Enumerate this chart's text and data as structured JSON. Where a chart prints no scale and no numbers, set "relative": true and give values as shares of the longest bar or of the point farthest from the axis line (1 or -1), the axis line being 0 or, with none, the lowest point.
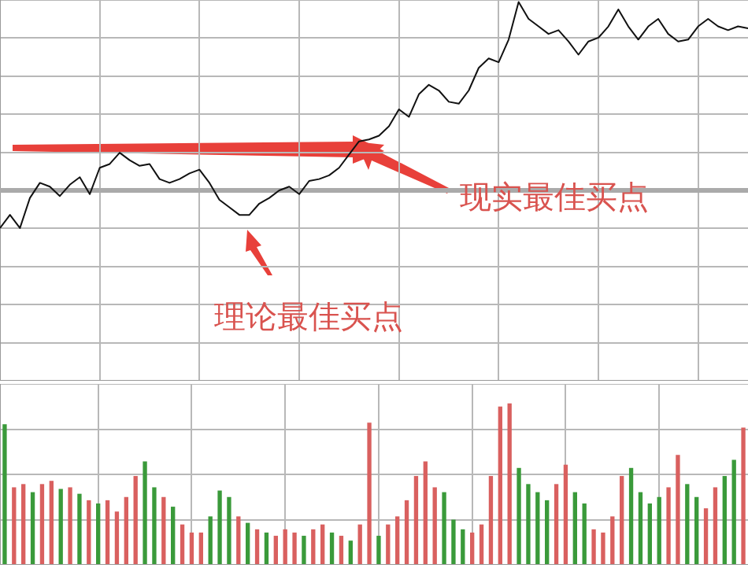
{
  "chart_data": [
    {
      "type": "line",
      "relative": true,
      "grid": true,
      "marker": "none",
      "line_style": "solid",
      "categories": [
        null,
        null,
        null,
        null,
        null,
        null,
        null,
        null,
        null,
        null,
        null,
        null,
        null,
        null,
        null,
        null,
        null,
        null,
        null,
        null,
        null,
        null,
        null,
        null,
        null,
        null,
        null,
        null,
        null,
        null,
        null,
        null,
        null,
        null,
        null,
        null,
        null,
        null,
        null,
        null,
        null,
        null,
        null,
        null,
        null,
        null,
        null,
        null,
        null,
        null,
        null,
        null,
        null,
        null,
        null,
        null,
        null,
        null,
        null,
        null,
        null,
        null,
        null,
        null,
        null,
        null,
        null,
        null,
        null,
        null,
        null,
        null,
        null,
        null,
        null,
        null
      ],
      "series": [
        {
          "color": "#111111",
          "values": [
            -0.2,
            -0.13,
            -0.2,
            -0.04,
            0.04,
            0.02,
            -0.03,
            0.03,
            0.07,
            -0.02,
            0.12,
            0.14,
            0.2,
            0.16,
            0.13,
            0.14,
            0.06,
            0.04,
            0.06,
            0.09,
            0.11,
            0.04,
            -0.05,
            -0.09,
            -0.13,
            -0.13,
            -0.07,
            -0.04,
            0,
            0.02,
            -0.02,
            0.05,
            0.06,
            0.08,
            0.12,
            0.19,
            0.26,
            0.27,
            0.29,
            0.34,
            0.43,
            0.39,
            0.51,
            0.56,
            0.53,
            0.47,
            0.46,
            0.53,
            0.65,
            0.7,
            0.68,
            0.8,
            1.0,
            0.91,
            0.87,
            0.83,
            0.85,
            0.79,
            0.72,
            0.79,
            0.81,
            0.87,
            0.96,
            0.87,
            0.8,
            0.87,
            0.91,
            0.83,
            0.79,
            0.8,
            0.87,
            0.91,
            0.87,
            0.85,
            0.87,
            0.86
          ]
        }
      ],
      "ref_lines": [
        {
          "axis": "y",
          "value": 0,
          "color": "#aaaaaa"
        }
      ],
      "annotations": [
        "现实最佳买点",
        "理论最佳买点"
      ]
    },
    {
      "type": "bar",
      "relative": true,
      "grid": true,
      "categories": [
        null,
        null,
        null,
        null,
        null,
        null,
        null,
        null,
        null,
        null,
        null,
        null,
        null,
        null,
        null,
        null,
        null,
        null,
        null,
        null,
        null,
        null,
        null,
        null,
        null,
        null,
        null,
        null,
        null,
        null,
        null,
        null,
        null,
        null,
        null,
        null,
        null,
        null,
        null,
        null,
        null,
        null,
        null,
        null,
        null,
        null,
        null,
        null,
        null,
        null,
        null,
        null,
        null,
        null,
        null,
        null,
        null,
        null,
        null,
        null,
        null,
        null,
        null,
        null,
        null,
        null,
        null,
        null,
        null,
        null,
        null,
        null,
        null,
        null,
        null,
        null,
        null,
        null,
        null,
        null
      ],
      "values": [
        0.87,
        0.48,
        0.5,
        0.45,
        0.5,
        0.52,
        0.47,
        0.48,
        0.44,
        0.4,
        0.38,
        0.4,
        0.33,
        0.42,
        0.55,
        0.64,
        0.48,
        0.42,
        0.36,
        0.25,
        0.2,
        0.2,
        0.3,
        0.46,
        0.42,
        0.3,
        0.26,
        0.22,
        0.2,
        0.18,
        0.22,
        0.2,
        0.18,
        0.22,
        0.25,
        0.2,
        0.18,
        0.15,
        0.25,
        0.88,
        0.18,
        0.25,
        0.3,
        0.4,
        0.55,
        0.64,
        0.48,
        0.45,
        0.28,
        0.22,
        0.2,
        0.25,
        0.55,
        0.98,
        1.0,
        0.6,
        0.5,
        0.45,
        0.4,
        0.5,
        0.62,
        0.45,
        0.38,
        0.22,
        0.2,
        0.3,
        0.55,
        0.6,
        0.45,
        0.38,
        0.42,
        0.48,
        0.68,
        0.5,
        0.42,
        0.35,
        0.48,
        0.55,
        0.65,
        0.85
      ],
      "colors": [
        "#3a9a3a",
        "#d9605f",
        "#d9605f",
        "#3a9a3a",
        "#d9605f",
        "#d9605f",
        "#3a9a3a",
        "#d9605f",
        "#3a9a3a",
        "#d9605f",
        "#3a9a3a",
        "#d9605f",
        "#d9605f",
        "#d9605f",
        "#d9605f",
        "#3a9a3a",
        "#3a9a3a",
        "#d9605f",
        "#3a9a3a",
        "#d9605f",
        "#d9605f",
        "#d9605f",
        "#3a9a3a",
        "#3a9a3a",
        "#3a9a3a",
        "#d9605f",
        "#3a9a3a",
        "#d9605f",
        "#3a9a3a",
        "#d9605f",
        "#d9605f",
        "#d9605f",
        "#3a9a3a",
        "#d9605f",
        "#d9605f",
        "#3a9a3a",
        "#d9605f",
        "#3a9a3a",
        "#d9605f",
        "#d9605f",
        "#3a9a3a",
        "#d9605f",
        "#d9605f",
        "#d9605f",
        "#d9605f",
        "#d9605f",
        "#d9605f",
        "#3a9a3a",
        "#3a9a3a",
        "#3a9a3a",
        "#d9605f",
        "#d9605f",
        "#d9605f",
        "#d9605f",
        "#d9605f",
        "#3a9a3a",
        "#3a9a3a",
        "#3a9a3a",
        "#3a9a3a",
        "#d9605f",
        "#d9605f",
        "#3a9a3a",
        "#3a9a3a",
        "#d9605f",
        "#d9605f",
        "#d9605f",
        "#d9605f",
        "#3a9a3a",
        "#3a9a3a",
        "#3a9a3a",
        "#3a9a3a",
        "#d9605f",
        "#d9605f",
        "#3a9a3a",
        "#3a9a3a",
        "#d9605f",
        "#d9605f",
        "#3a9a3a",
        "#3a9a3a",
        "#d9605f"
      ]
    }
  ]
}
